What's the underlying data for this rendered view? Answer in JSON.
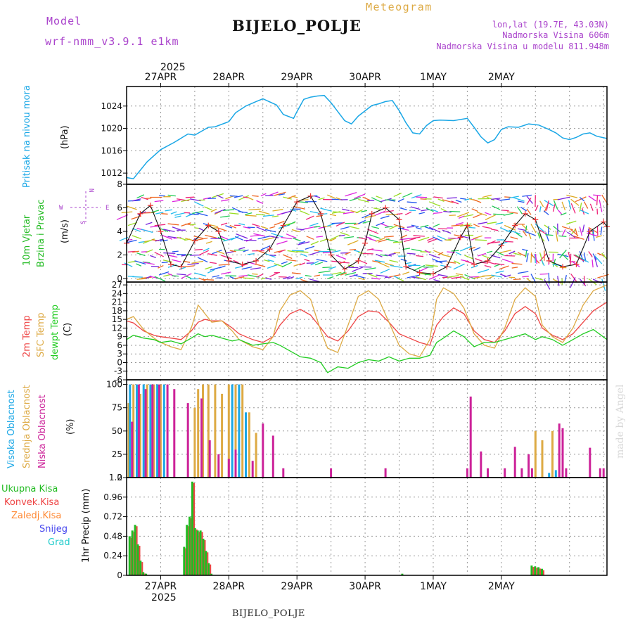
{
  "header": {
    "model_label": "Model",
    "model_name": "wrf-nmm_v3.9.1  e1km",
    "product": "Meteogram",
    "station": "BIJELO_POLJE",
    "lonlat": "lon,lat (19.7E, 43.03N)",
    "altitude": "Nadmorska Visina 606m",
    "model_altitude": "Nadmorska Visina u modelu 811.948m",
    "footer_station": "BIJELO_POLJE",
    "credit": "made by Angel"
  },
  "colors": {
    "pressure": "#1aa7e6",
    "wind_label": "#22bb22",
    "t2m": "#ee4444",
    "tsfc": "#ddaa44",
    "dewpt": "#22cc22",
    "cloud_high": "#1aa7e6",
    "cloud_mid": "#ddaa44",
    "cloud_low": "#cc2299",
    "precip_total": "#22bb22",
    "precip_conv": "#ee4444",
    "precip_frz": "#ff8833",
    "precip_snow": "#4444ee",
    "precip_hail": "#22cccc",
    "purple": "#aa44cc"
  },
  "chart_data": [
    {
      "type": "line",
      "panel": "pressure",
      "ylabel_a": "Pritisak na nivou mora",
      "ylabel_b": "(hPa)",
      "ylim": [
        1010,
        1027.5
      ],
      "yticks": [
        "1012",
        "1016",
        "1020",
        "1024"
      ],
      "ytick_values": [
        1012,
        1016,
        1020,
        1024
      ],
      "x": [
        -0.5,
        -0.4,
        -0.2,
        0,
        0.2,
        0.4,
        0.5,
        0.7,
        0.8,
        1,
        1.1,
        1.25,
        1.4,
        1.5,
        1.7,
        1.8,
        1.95,
        2,
        2.1,
        2.2,
        2.3,
        2.4,
        2.5,
        2.6,
        2.7,
        2.8,
        2.9,
        3.1,
        3.2,
        3.3,
        3.4,
        3.5,
        3.6,
        3.7,
        3.8,
        3.9,
        4,
        4.1,
        4.3,
        4.5,
        4.6,
        4.7,
        4.8,
        4.9,
        5,
        5.1,
        5.25,
        5.4,
        5.55,
        5.7,
        5.8,
        5.9,
        6,
        6.1,
        6.2,
        6.3,
        6.4,
        6.55
      ],
      "values": [
        1011.2,
        1011.0,
        1014.0,
        1016.2,
        1017.5,
        1019.0,
        1018.8,
        1020.2,
        1020.3,
        1021.2,
        1022.8,
        1024.0,
        1024.8,
        1025.3,
        1024.2,
        1022.5,
        1021.8,
        1023.0,
        1025.2,
        1025.6,
        1025.8,
        1025.9,
        1024.6,
        1023.0,
        1021.4,
        1020.8,
        1022.2,
        1024.1,
        1024.4,
        1024.8,
        1025.0,
        1023.2,
        1021.0,
        1019.2,
        1019.0,
        1020.5,
        1021.4,
        1021.5,
        1021.4,
        1021.8,
        1020.2,
        1018.5,
        1017.4,
        1018.0,
        1019.8,
        1020.3,
        1020.2,
        1020.8,
        1020.6,
        1019.8,
        1019.2,
        1018.3,
        1018.0,
        1018.4,
        1019.0,
        1019.2,
        1018.6,
        1018.2
      ]
    },
    {
      "type": "line",
      "panel": "wind",
      "ylabel_a": "10m Vjetar",
      "ylabel_b": "Brzina i Pravac",
      "ylabel_c": "(m/s)",
      "compass_w": "W",
      "compass_e": "E",
      "compass_n": "N",
      "compass_s": "S",
      "ylim": [
        -0.3,
        8
      ],
      "yticks": [
        "0",
        "2",
        "4",
        "6",
        "8"
      ],
      "ytick_values": [
        0,
        2,
        4,
        6,
        8
      ],
      "x": [
        -0.5,
        -0.3,
        -0.15,
        0,
        0.15,
        0.3,
        0.5,
        0.7,
        0.85,
        1,
        1.2,
        1.4,
        1.6,
        1.8,
        2,
        2.2,
        2.35,
        2.5,
        2.7,
        2.9,
        3.0,
        3.1,
        3.3,
        3.5,
        3.6,
        3.8,
        4.0,
        4.2,
        4.4,
        4.5,
        4.6,
        4.8,
        5.0,
        5.2,
        5.35,
        5.5,
        5.7,
        5.9,
        6.1,
        6.3,
        6.5,
        6.55
      ],
      "values": [
        3.0,
        5.5,
        6.2,
        4.0,
        1.2,
        1.0,
        3.2,
        4.5,
        4.0,
        1.5,
        1.2,
        1.5,
        2.5,
        4.5,
        6.5,
        7.0,
        5.5,
        2.0,
        0.8,
        1.5,
        3.0,
        5.5,
        6.0,
        5.0,
        1.0,
        0.5,
        0.4,
        1.0,
        3.5,
        4.5,
        1.2,
        1.5,
        2.8,
        4.5,
        5.5,
        5.0,
        1.5,
        1.0,
        1.2,
        4.0,
        4.8,
        4.4
      ]
    },
    {
      "type": "line",
      "panel": "temperature",
      "ylabel_a": "2m Temp",
      "ylabel_b": "SFC Temp",
      "ylabel_c": "dewpt Temp",
      "ylabel_d": "(C)",
      "ylim": [
        -6,
        28
      ],
      "yticks": [
        "-6",
        "-3",
        "0",
        "3",
        "6",
        "9",
        "12",
        "15",
        "18",
        "21",
        "24",
        "27"
      ],
      "ytick_values": [
        -6,
        -3,
        0,
        3,
        6,
        9,
        12,
        15,
        18,
        21,
        24,
        27
      ],
      "x": [
        -0.5,
        -0.4,
        -0.25,
        -0.1,
        0,
        0.15,
        0.3,
        0.45,
        0.55,
        0.65,
        0.75,
        0.9,
        1.05,
        1.15,
        1.35,
        1.5,
        1.65,
        1.75,
        1.9,
        2.05,
        2.2,
        2.35,
        2.45,
        2.6,
        2.75,
        2.9,
        3.05,
        3.2,
        3.35,
        3.5,
        3.65,
        3.8,
        3.95,
        4.05,
        4.15,
        4.3,
        4.45,
        4.6,
        4.75,
        4.9,
        5.05,
        5.2,
        5.35,
        5.5,
        5.6,
        5.75,
        5.9,
        6.05,
        6.2,
        6.35,
        6.55
      ],
      "series": [
        {
          "name": "2m Temp",
          "key": "t2m",
          "values": [
            14.5,
            13.8,
            11.0,
            9.5,
            9.0,
            8.5,
            8.0,
            11.0,
            14.0,
            15.0,
            14.5,
            14.5,
            12.0,
            10.0,
            8.0,
            7.0,
            9.0,
            13.0,
            17.0,
            18.5,
            16.5,
            12.0,
            9.0,
            7.5,
            11.0,
            16.0,
            18.0,
            17.5,
            14.0,
            10.0,
            8.5,
            7.0,
            6.0,
            13.0,
            16.0,
            19.0,
            17.0,
            11.0,
            8.0,
            7.0,
            11.0,
            17.0,
            19.5,
            17.0,
            12.0,
            9.5,
            8.0,
            10.0,
            14.0,
            18.0,
            21.0
          ]
        },
        {
          "name": "SFC Temp",
          "key": "tsfc",
          "values": [
            15.0,
            16.0,
            11.5,
            8.5,
            7.0,
            5.5,
            4.5,
            12.0,
            20.0,
            17.0,
            14.0,
            14.5,
            11.0,
            8.0,
            5.5,
            4.5,
            9.0,
            18.0,
            23.5,
            25.0,
            22.0,
            11.0,
            5.0,
            3.5,
            13.0,
            23.0,
            25.0,
            22.0,
            14.0,
            6.0,
            3.0,
            2.0,
            8.0,
            22.0,
            26.0,
            24.0,
            19.0,
            10.0,
            6.0,
            5.0,
            12.0,
            22.0,
            26.0,
            23.0,
            13.0,
            9.0,
            7.0,
            12.0,
            20.0,
            25.0,
            27.0
          ]
        },
        {
          "name": "dewpt Temp",
          "key": "dewpt",
          "values": [
            8.0,
            9.5,
            8.5,
            8.0,
            7.0,
            7.5,
            6.5,
            8.5,
            10.0,
            9.0,
            9.5,
            8.5,
            7.5,
            8.0,
            6.0,
            6.5,
            7.0,
            6.0,
            4.0,
            2.0,
            1.5,
            0.0,
            -3.5,
            -1.5,
            -2.0,
            0.0,
            1.0,
            0.5,
            2.0,
            0.5,
            1.5,
            1.5,
            2.5,
            7.0,
            8.5,
            11.0,
            9.0,
            5.5,
            7.0,
            7.0,
            8.0,
            9.0,
            10.0,
            8.0,
            9.0,
            8.0,
            6.0,
            8.0,
            10.0,
            11.5,
            8.0
          ]
        }
      ]
    },
    {
      "type": "bar",
      "panel": "clouds",
      "ylabel_a": "Visoka Oblacnost",
      "ylabel_b": "Srednja Oblacnost",
      "ylabel_c": "Niska Oblacnost",
      "ylabel_d": "(%)",
      "ylim": [
        0,
        105
      ],
      "yticks": [
        "0",
        "25",
        "50",
        "75",
        "100"
      ],
      "ytick_values": [
        0,
        25,
        50,
        75,
        100
      ],
      "series": [
        {
          "name": "Visoka Oblacnost",
          "key": "cloud_high",
          "x": [
            -0.45,
            -0.35,
            -0.25,
            -0.15,
            -0.05,
            0.05,
            1.05,
            1.15,
            1.25,
            5.7,
            5.8
          ],
          "values": [
            100,
            100,
            100,
            100,
            100,
            100,
            100,
            100,
            70,
            5,
            8
          ]
        },
        {
          "name": "Srednja Oblacnost",
          "key": "cloud_mid",
          "x": [
            -0.47,
            -0.4,
            -0.3,
            -0.2,
            -0.1,
            0.0,
            0.5,
            0.55,
            0.62,
            0.7,
            0.8,
            0.9,
            1.0,
            1.1,
            1.2,
            1.3,
            1.4,
            5.5,
            5.6,
            5.75
          ],
          "values": [
            80,
            100,
            90,
            100,
            100,
            100,
            75,
            95,
            100,
            100,
            100,
            90,
            100,
            100,
            100,
            70,
            48,
            50,
            40,
            50
          ]
        },
        {
          "name": "Niska Oblacnost",
          "key": "cloud_low",
          "x": [
            -0.42,
            -0.32,
            -0.22,
            -0.12,
            -0.02,
            0.1,
            0.2,
            0.4,
            0.6,
            0.72,
            0.85,
            1.0,
            1.1,
            1.35,
            1.5,
            1.65,
            1.8,
            2.5,
            3.3,
            4.5,
            4.55,
            4.7,
            4.8,
            5.05,
            5.2,
            5.3,
            5.4,
            5.45,
            5.85,
            5.9,
            5.95,
            6.3,
            6.45,
            6.5
          ],
          "values": [
            60,
            100,
            95,
            100,
            100,
            100,
            95,
            80,
            85,
            40,
            25,
            20,
            30,
            18,
            58,
            45,
            10,
            10,
            10,
            10,
            87,
            28,
            10,
            10,
            33,
            10,
            25,
            10,
            58,
            53,
            10,
            32,
            10,
            10
          ]
        }
      ]
    },
    {
      "type": "bar",
      "panel": "precip",
      "ylabel_a": "1hr Precip (mm)",
      "legend": [
        "Ukupna  Kisa",
        "Konvek.Kisa",
        "Zaledj.Kisa",
        "Snijeg",
        "Grad"
      ],
      "ylim": [
        0,
        1.2
      ],
      "yticks": [
        "0",
        "0.24",
        "0.48",
        "0.72",
        "0.96",
        "1.2"
      ],
      "ytick_values": [
        0,
        0.24,
        0.48,
        0.72,
        0.96,
        1.2
      ],
      "x": [
        -0.45,
        -0.41,
        -0.37,
        -0.33,
        -0.29,
        -0.25,
        -0.21,
        0.35,
        0.39,
        0.43,
        0.47,
        0.51,
        0.55,
        0.59,
        0.63,
        0.67,
        0.71,
        0.75,
        3.55,
        5.45,
        5.5,
        5.55,
        5.6
      ],
      "values": [
        0.48,
        0.55,
        0.62,
        0.38,
        0.18,
        0.04,
        0.02,
        0.35,
        0.62,
        0.72,
        1.15,
        0.58,
        0.55,
        0.55,
        0.45,
        0.3,
        0.15,
        0.02,
        0.02,
        0.12,
        0.11,
        0.1,
        0.08
      ],
      "xticks": [
        "27APR",
        "28APR",
        "29APR",
        "30APR",
        "1MAY",
        "2MAY"
      ],
      "xtick_values": [
        0,
        1,
        2,
        3,
        4,
        5
      ],
      "year": "2025",
      "xlim": [
        -0.5,
        6.55
      ]
    }
  ]
}
